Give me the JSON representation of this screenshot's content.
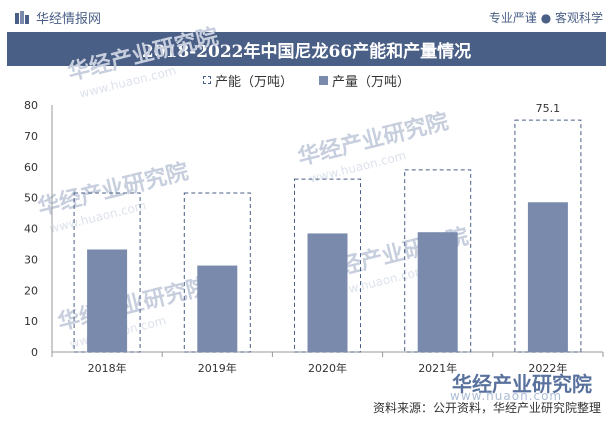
{
  "header": {
    "brand": "华经情报网",
    "slogan": "专业严谨 ● 客观科学"
  },
  "title": "2018-2022年中国尼龙66产能和产量情况",
  "legend": {
    "capacity": "产能（万吨）",
    "output": "产量（万吨）"
  },
  "watermark": {
    "text": "华经产业研究院",
    "url": "www.huaon.com"
  },
  "source": "资料来源：公开资料，华经产业研究院整理",
  "colors": {
    "title_bg": "#4a5f86",
    "bar_fill": "#7a8aad",
    "dashed_border": "#4a5f86"
  },
  "chart_data": {
    "type": "bar",
    "categories": [
      "2018年",
      "2019年",
      "2020年",
      "2021年",
      "2022年"
    ],
    "series": [
      {
        "name": "产能（万吨）",
        "style": "dashed-outline",
        "values": [
          51.5,
          51.5,
          56,
          59,
          75.1
        ]
      },
      {
        "name": "产量（万吨）",
        "style": "solid",
        "values": [
          33.2,
          28,
          38.4,
          38.8,
          48.5
        ]
      }
    ],
    "data_labels": [
      {
        "category": "2022年",
        "series": "产能（万吨）",
        "text": "75.1"
      }
    ],
    "ylim": [
      0,
      80
    ],
    "yticks": [
      0,
      10,
      20,
      30,
      40,
      50,
      60,
      70,
      80
    ],
    "grid": false,
    "legend_position": "top"
  }
}
